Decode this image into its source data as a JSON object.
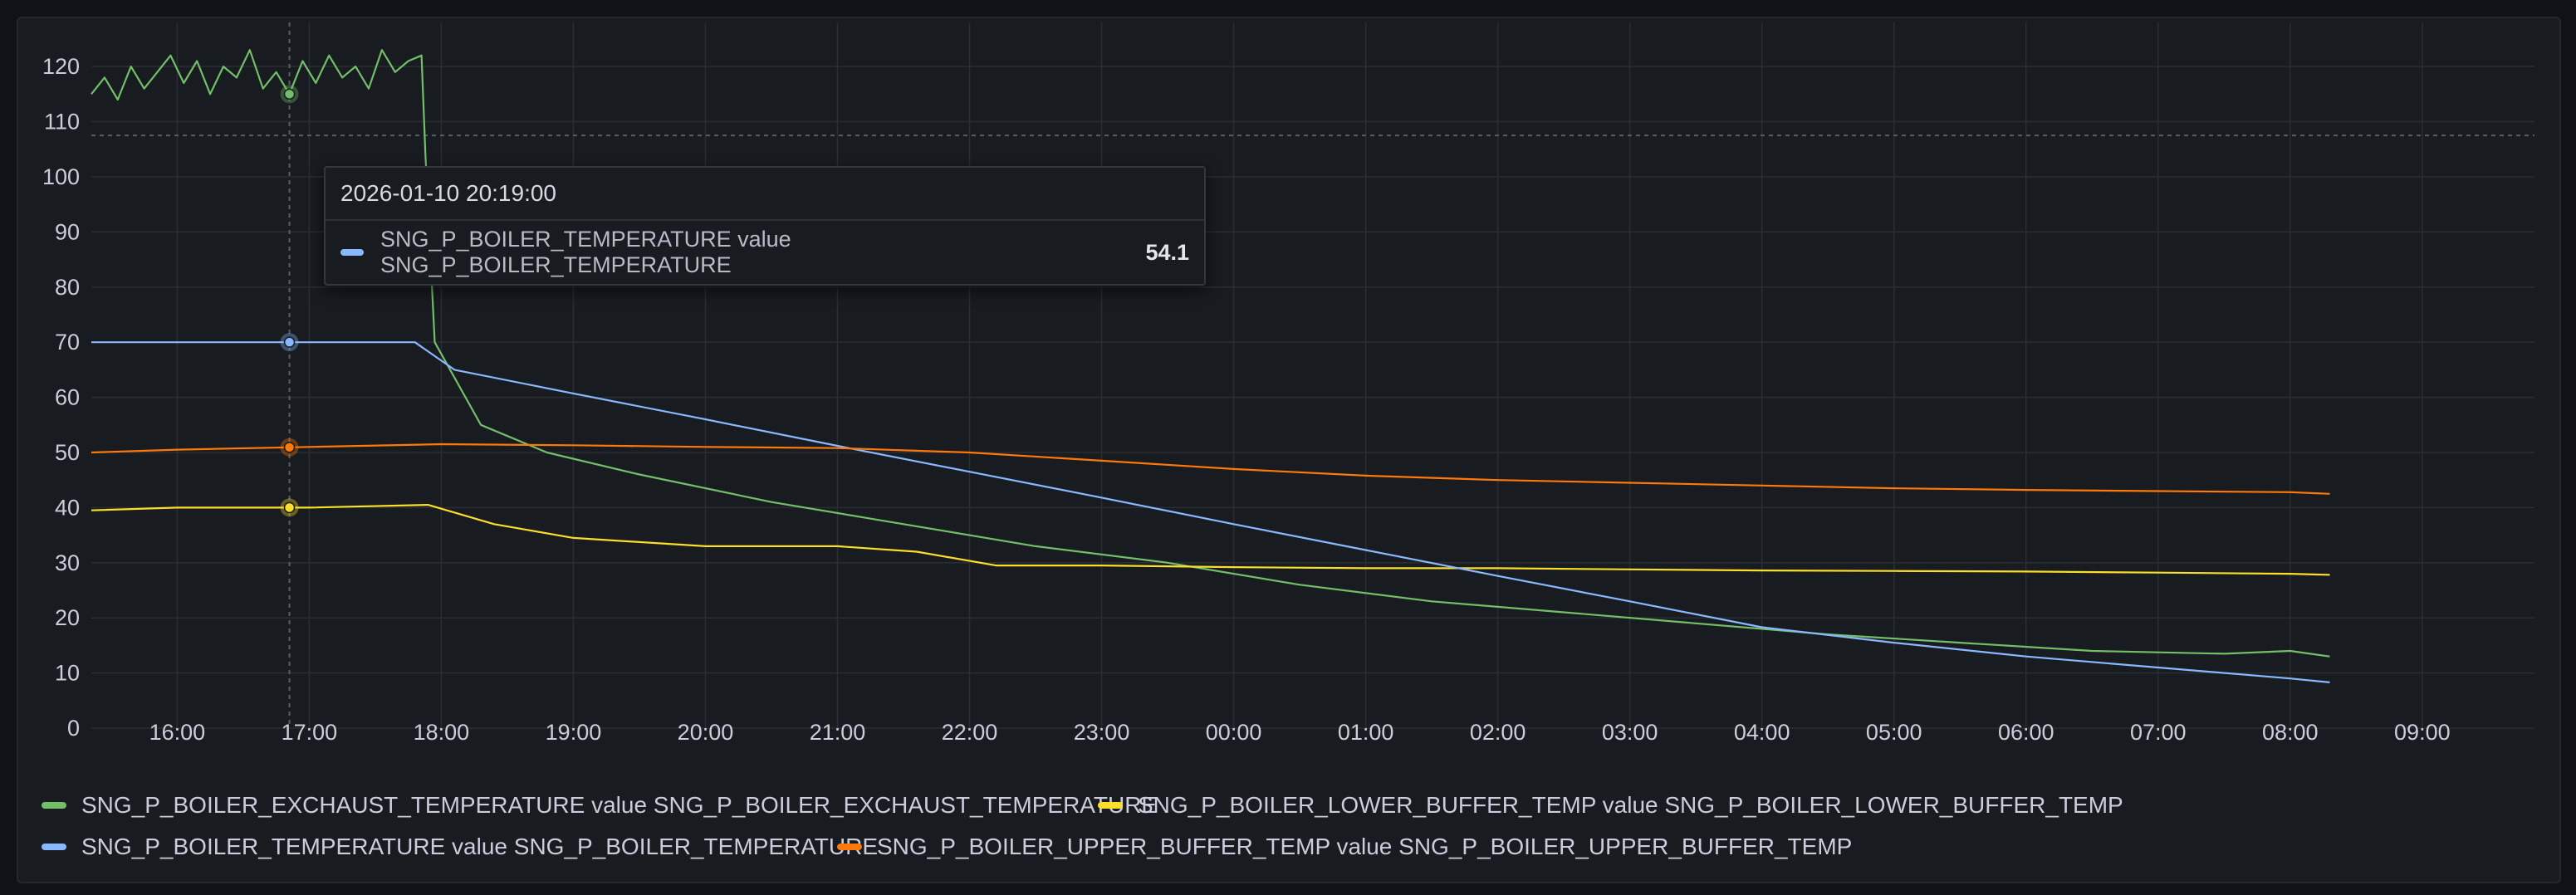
{
  "chart_data": {
    "type": "line",
    "y_ticks": [
      0,
      10,
      20,
      30,
      40,
      50,
      60,
      70,
      80,
      90,
      100,
      110,
      120
    ],
    "x_ticks": [
      "16:00",
      "17:00",
      "18:00",
      "19:00",
      "20:00",
      "21:00",
      "22:00",
      "23:00",
      "00:00",
      "01:00",
      "02:00",
      "03:00",
      "04:00",
      "05:00",
      "06:00",
      "07:00",
      "08:00",
      "09:00"
    ],
    "x_range_hours": [
      -0.65,
      17.85
    ],
    "ylim": [
      0,
      128
    ],
    "grid": true,
    "threshold_line": 107.5,
    "crosshair_x": 0.85,
    "legend_position": "bottom",
    "series": [
      {
        "name": "SNG_P_BOILER_EXCHAUST_TEMPERATURE value SNG_P_BOILER_EXCHAUST_TEMPERATURE",
        "color": "#73bf69",
        "points": [
          [
            -0.65,
            115
          ],
          [
            -0.55,
            118
          ],
          [
            -0.45,
            114
          ],
          [
            -0.35,
            120
          ],
          [
            -0.25,
            116
          ],
          [
            -0.15,
            119
          ],
          [
            -0.05,
            122
          ],
          [
            0.05,
            117
          ],
          [
            0.15,
            121
          ],
          [
            0.25,
            115
          ],
          [
            0.35,
            120
          ],
          [
            0.45,
            118
          ],
          [
            0.55,
            123
          ],
          [
            0.65,
            116
          ],
          [
            0.75,
            119
          ],
          [
            0.85,
            115
          ],
          [
            0.95,
            121
          ],
          [
            1.05,
            117
          ],
          [
            1.15,
            122
          ],
          [
            1.25,
            118
          ],
          [
            1.35,
            120
          ],
          [
            1.45,
            116
          ],
          [
            1.55,
            123
          ],
          [
            1.65,
            119
          ],
          [
            1.75,
            121
          ],
          [
            1.85,
            122
          ],
          [
            1.88,
            104
          ],
          [
            1.95,
            70
          ],
          [
            2.3,
            55
          ],
          [
            2.8,
            50
          ],
          [
            3.5,
            46
          ],
          [
            4.5,
            41
          ],
          [
            5.5,
            37
          ],
          [
            6.5,
            33
          ],
          [
            7.5,
            30
          ],
          [
            8.5,
            26
          ],
          [
            9.5,
            23
          ],
          [
            10.5,
            21
          ],
          [
            11.5,
            19
          ],
          [
            12.5,
            17
          ],
          [
            13.5,
            15.5
          ],
          [
            14.5,
            14
          ],
          [
            15.5,
            13.5
          ],
          [
            16,
            14
          ],
          [
            16.3,
            13
          ]
        ]
      },
      {
        "name": "SNG_P_BOILER_LOWER_BUFFER_TEMP value SNG_P_BOILER_LOWER_BUFFER_TEMP",
        "color": "#fade2a",
        "points": [
          [
            -0.65,
            39.5
          ],
          [
            0,
            40
          ],
          [
            1,
            40
          ],
          [
            1.9,
            40.5
          ],
          [
            2.4,
            37
          ],
          [
            3,
            34.5
          ],
          [
            4,
            33
          ],
          [
            5,
            33
          ],
          [
            5.6,
            32
          ],
          [
            6.2,
            29.5
          ],
          [
            7,
            29.5
          ],
          [
            8,
            29.2
          ],
          [
            9,
            29
          ],
          [
            10,
            29
          ],
          [
            11,
            28.8
          ],
          [
            12,
            28.6
          ],
          [
            13,
            28.5
          ],
          [
            14,
            28.4
          ],
          [
            15,
            28.2
          ],
          [
            16,
            28
          ],
          [
            16.3,
            27.8
          ]
        ]
      },
      {
        "name": "SNG_P_BOILER_TEMPERATURE value SNG_P_BOILER_TEMPERATURE",
        "color": "#8ab8ff",
        "points": [
          [
            -0.65,
            70
          ],
          [
            0,
            70
          ],
          [
            1,
            70
          ],
          [
            1.8,
            70
          ],
          [
            2.1,
            65
          ],
          [
            3,
            60.7
          ],
          [
            4,
            56
          ],
          [
            5,
            51.2
          ],
          [
            6,
            46.5
          ],
          [
            7,
            41.8
          ],
          [
            8,
            37
          ],
          [
            9,
            32.3
          ],
          [
            10,
            27.6
          ],
          [
            11,
            23
          ],
          [
            12,
            18.3
          ],
          [
            13,
            15.5
          ],
          [
            14,
            13
          ],
          [
            15,
            11
          ],
          [
            16,
            9
          ],
          [
            16.3,
            8.3
          ]
        ]
      },
      {
        "name": "SNG_P_BOILER_UPPER_BUFFER_TEMP value SNG_P_BOILER_UPPER_BUFFER_TEMP",
        "color": "#ff780a",
        "points": [
          [
            -0.65,
            50
          ],
          [
            0,
            50.5
          ],
          [
            1,
            51
          ],
          [
            2,
            51.5
          ],
          [
            3,
            51.3
          ],
          [
            4,
            51
          ],
          [
            5,
            50.8
          ],
          [
            6,
            50
          ],
          [
            7,
            48.5
          ],
          [
            8,
            47
          ],
          [
            9,
            45.8
          ],
          [
            10,
            45
          ],
          [
            11,
            44.5
          ],
          [
            12,
            44
          ],
          [
            13,
            43.5
          ],
          [
            14,
            43.2
          ],
          [
            15,
            43
          ],
          [
            16,
            42.8
          ],
          [
            16.3,
            42.5
          ]
        ]
      }
    ]
  },
  "tooltip": {
    "time": "2026-01-10 20:19:00",
    "series_label": "SNG_P_BOILER_TEMPERATURE value SNG_P_BOILER_TEMPERATURE",
    "value": "54.1",
    "color": "#8ab8ff"
  },
  "legend": [
    {
      "label": "SNG_P_BOILER_EXCHAUST_TEMPERATURE value SNG_P_BOILER_EXCHAUST_TEMPERATURE",
      "color": "#73bf69"
    },
    {
      "label": "SNG_P_BOILER_LOWER_BUFFER_TEMP value SNG_P_BOILER_LOWER_BUFFER_TEMP",
      "color": "#fade2a"
    },
    {
      "label": "SNG_P_BOILER_TEMPERATURE value SNG_P_BOILER_TEMPERATURE",
      "color": "#8ab8ff"
    },
    {
      "label": "SNG_P_BOILER_UPPER_BUFFER_TEMP value SNG_P_BOILER_UPPER_BUFFER_TEMP",
      "color": "#ff780a"
    }
  ]
}
